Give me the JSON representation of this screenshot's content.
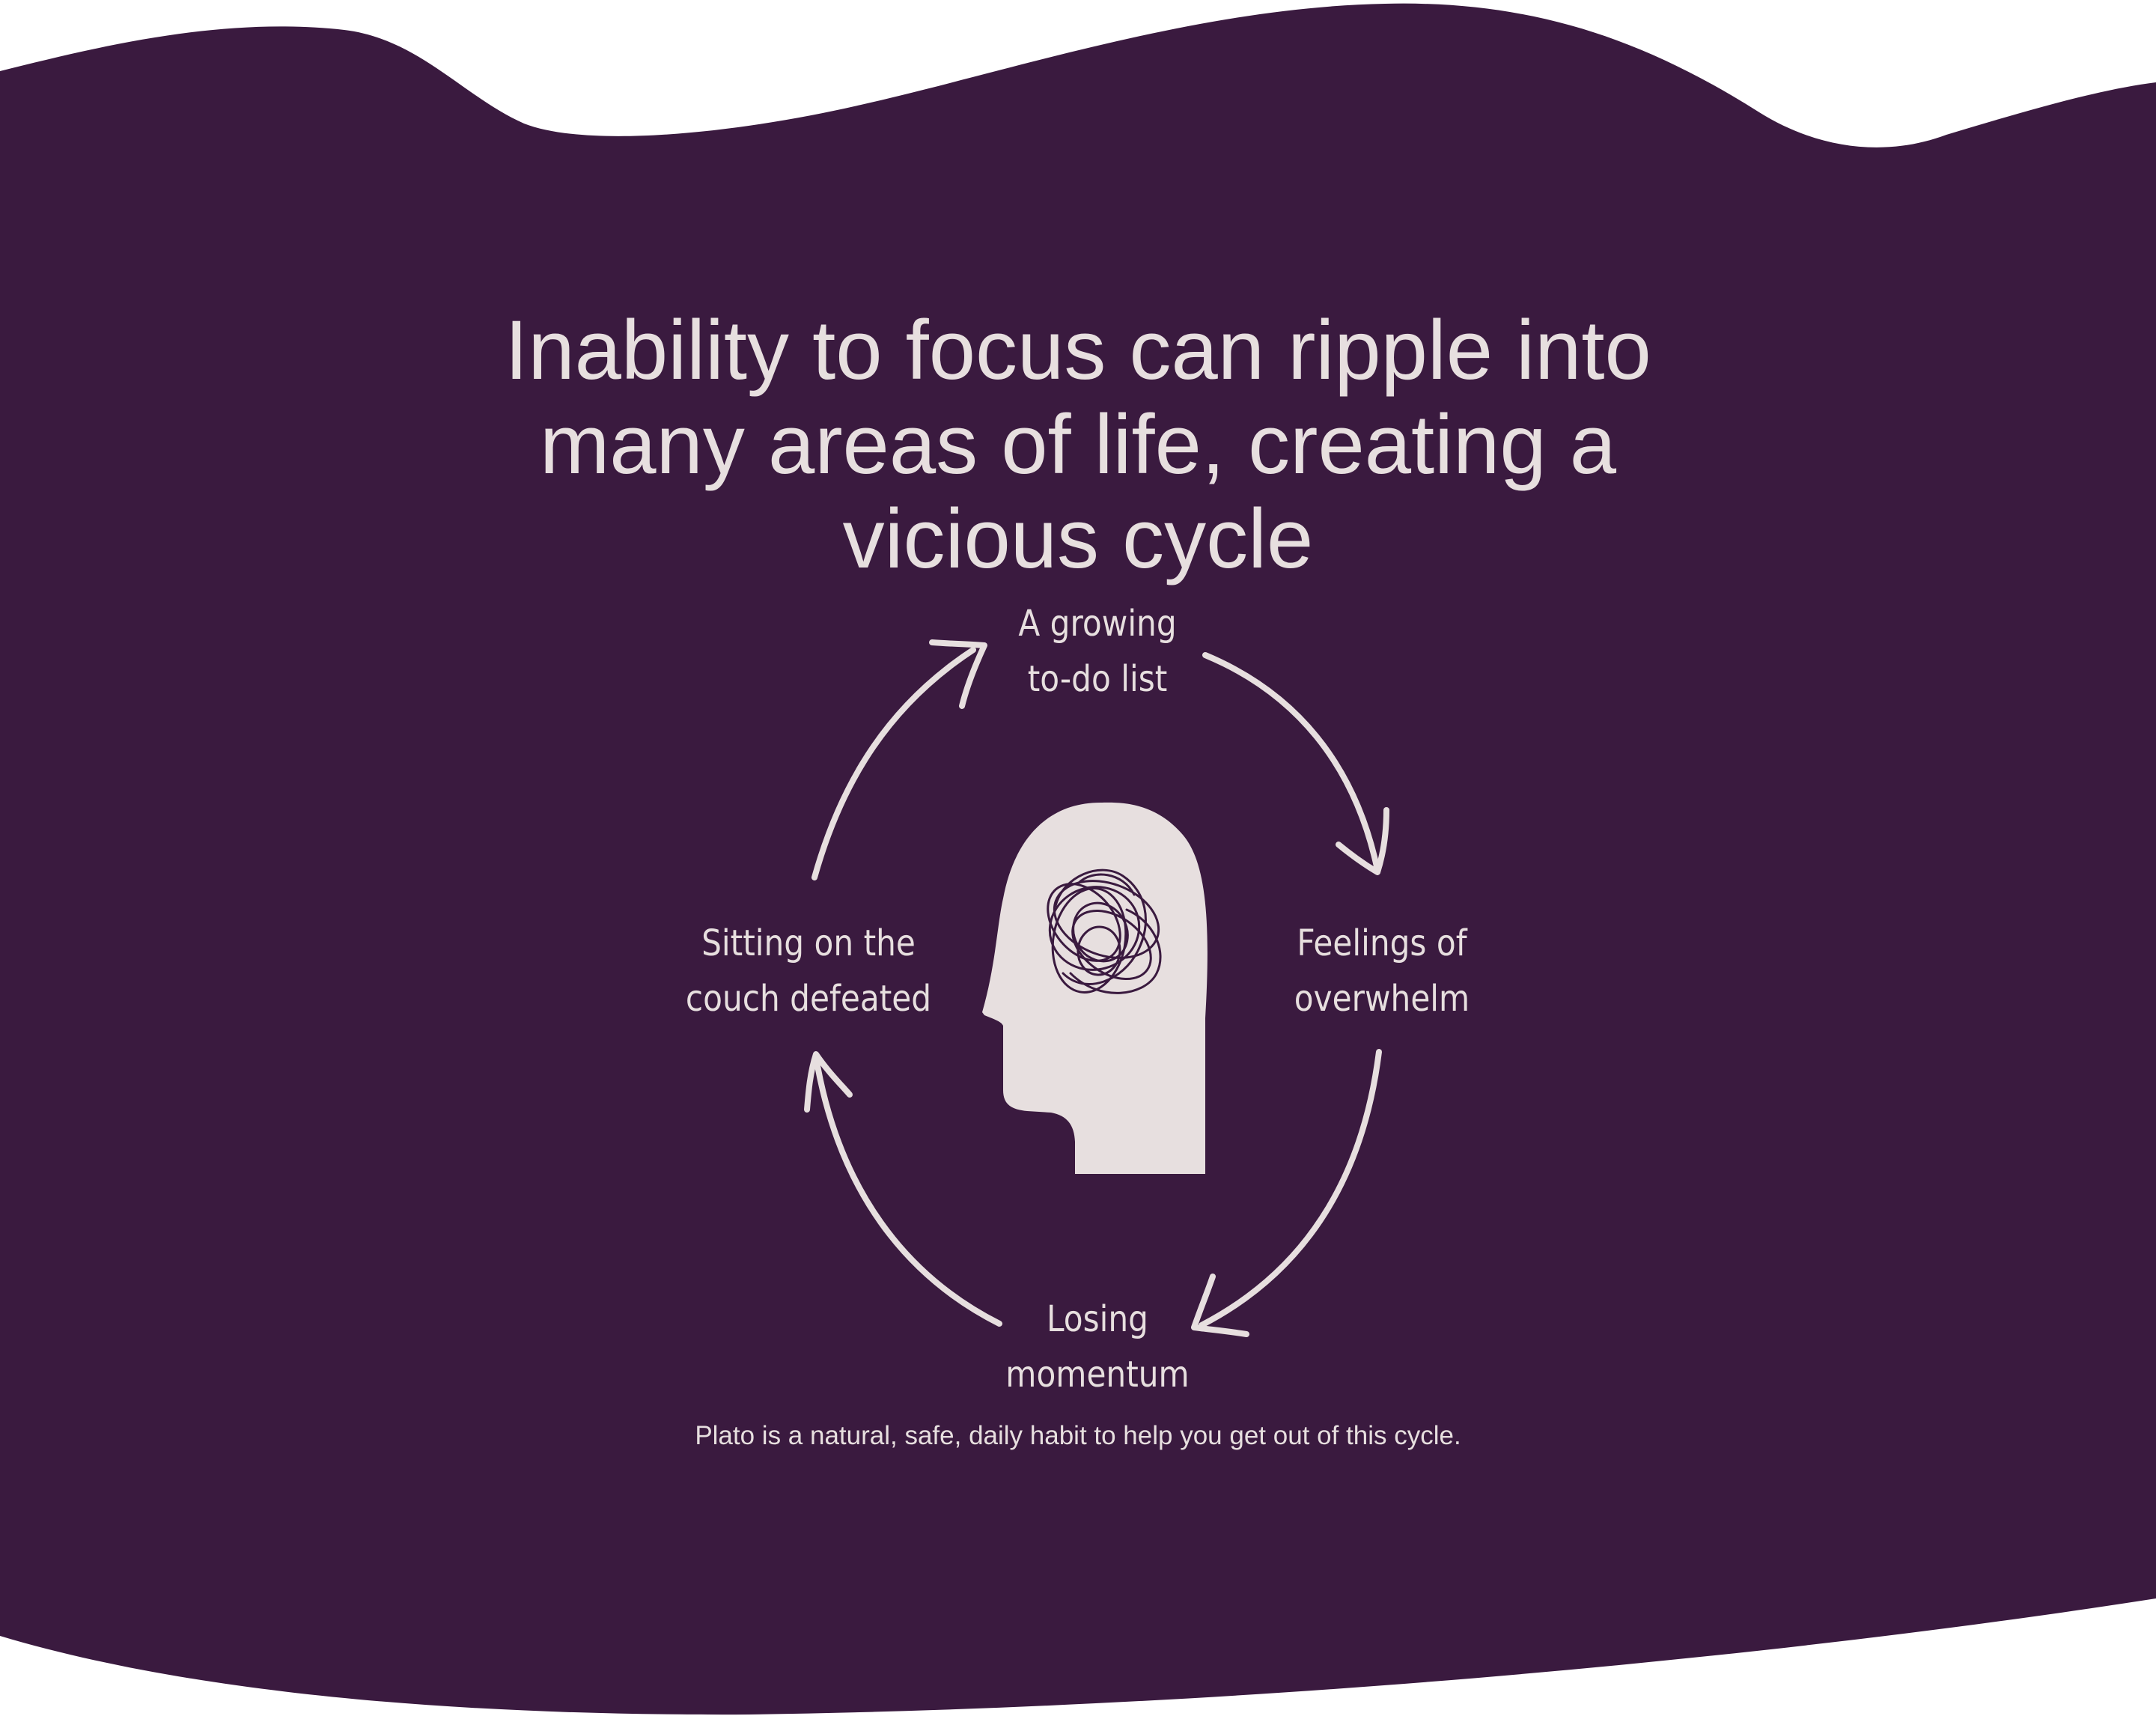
{
  "colors": {
    "background": "#ffffff",
    "panel": "#3a1a3f",
    "foreground": "#e7dfdf",
    "scribble": "#3a1a3f"
  },
  "headline": {
    "line1": "Inability to focus can ripple into",
    "line2": "many areas of life, creating a",
    "line3": "vicious cycle"
  },
  "cycle": {
    "top": {
      "line1": "A growing",
      "line2": "to-do list"
    },
    "right": {
      "line1": "Feelings of",
      "line2": "overwhelm"
    },
    "bottom": {
      "line1": "Losing",
      "line2": "momentum"
    },
    "left": {
      "line1": "Sitting on the",
      "line2": "couch defeated"
    }
  },
  "center_icon": "head-with-tangled-thoughts-icon",
  "arrow_icon": "curved-arrow-icon",
  "footer": {
    "text": "Plato is a natural, safe, daily habit to help you get out of this cycle."
  }
}
